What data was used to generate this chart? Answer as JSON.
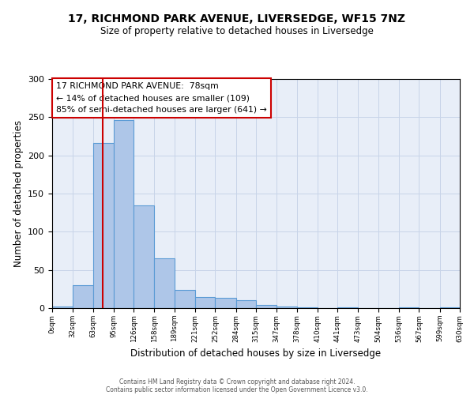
{
  "title_line1": "17, RICHMOND PARK AVENUE, LIVERSEDGE, WF15 7NZ",
  "title_line2": "Size of property relative to detached houses in Liversedge",
  "xlabel": "Distribution of detached houses by size in Liversedge",
  "ylabel": "Number of detached properties",
  "bin_edges": [
    0,
    32,
    63,
    95,
    126,
    158,
    189,
    221,
    252,
    284,
    315,
    347,
    378,
    410,
    441,
    473,
    504,
    536,
    567,
    599,
    630
  ],
  "bin_counts": [
    2,
    30,
    216,
    246,
    135,
    65,
    24,
    15,
    13,
    10,
    4,
    2,
    1,
    0,
    1,
    0,
    0,
    1,
    0,
    1
  ],
  "bar_color": "#aec6e8",
  "bar_edge_color": "#5b9bd5",
  "bar_edge_width": 0.8,
  "red_line_x": 78,
  "red_line_color": "#cc0000",
  "ylim": [
    0,
    300
  ],
  "yticks": [
    0,
    50,
    100,
    150,
    200,
    250,
    300
  ],
  "grid_color": "#c8d4e8",
  "bg_color": "#e8eef8",
  "annotation_line1": "17 RICHMOND PARK AVENUE:  78sqm",
  "annotation_line2": "← 14% of detached houses are smaller (109)",
  "annotation_line3": "85% of semi-detached houses are larger (641) →",
  "annotation_box_color": "#ffffff",
  "annotation_box_edge_color": "#cc0000",
  "footer_line1": "Contains HM Land Registry data © Crown copyright and database right 2024.",
  "footer_line2": "Contains public sector information licensed under the Open Government Licence v3.0.",
  "tick_labels": [
    "0sqm",
    "32sqm",
    "63sqm",
    "95sqm",
    "126sqm",
    "158sqm",
    "189sqm",
    "221sqm",
    "252sqm",
    "284sqm",
    "315sqm",
    "347sqm",
    "378sqm",
    "410sqm",
    "441sqm",
    "473sqm",
    "504sqm",
    "536sqm",
    "567sqm",
    "599sqm",
    "630sqm"
  ]
}
